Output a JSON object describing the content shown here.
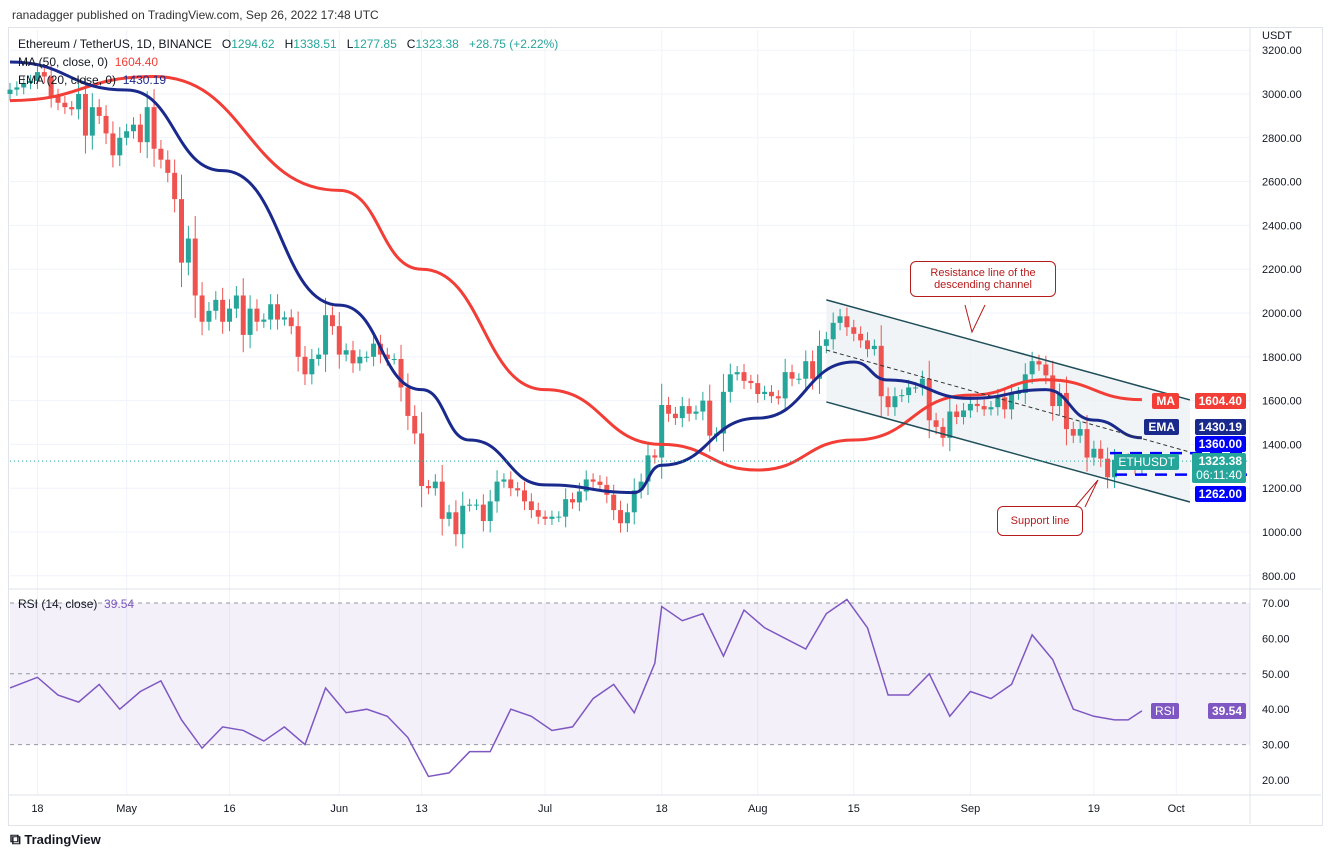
{
  "header": {
    "published": "ranadagger published on TradingView.com, Sep 26, 2022 17:48 UTC",
    "symbol": "Ethereum / TetherUS, 1D, BINANCE",
    "o_label": "O",
    "o": "1294.62",
    "h_label": "H",
    "h": "1338.51",
    "l_label": "L",
    "l": "1277.85",
    "c_label": "C",
    "c": "1323.38",
    "change": "+28.75 (+2.22%)",
    "ma_label": "MA (50, close, 0)",
    "ma_value": "1604.40",
    "ema_label": "EMA (20, close, 0)",
    "ema_value": "1430.19"
  },
  "colors": {
    "up": "#26a69a",
    "down": "#ef5350",
    "ma": "#f23e36",
    "ema": "#1a2a8c",
    "rsi": "#7e57c2",
    "channel": "#1f4e5a",
    "level": "#0000ff"
  },
  "axis": {
    "currency": "USDT",
    "price_ticks": [
      "3200.00",
      "3000.00",
      "2800.00",
      "2600.00",
      "2400.00",
      "2200.00",
      "2000.00",
      "1800.00",
      "1600.00",
      "1400.00",
      "1200.00",
      "1000.00",
      "800.00"
    ],
    "rsi_ticks": [
      "70.00",
      "60.00",
      "50.00",
      "40.00",
      "30.00",
      "20.00"
    ],
    "x_ticks": [
      {
        "label": "18",
        "date": "2022-04-18"
      },
      {
        "label": "May",
        "date": "2022-05-01"
      },
      {
        "label": "16",
        "date": "2022-05-16"
      },
      {
        "label": "Jun",
        "date": "2022-06-01"
      },
      {
        "label": "13",
        "date": "2022-06-13"
      },
      {
        "label": "Jul",
        "date": "2022-07-01"
      },
      {
        "label": "18",
        "date": "2022-07-18"
      },
      {
        "label": "Aug",
        "date": "2022-08-01"
      },
      {
        "label": "15",
        "date": "2022-08-15"
      },
      {
        "label": "Sep",
        "date": "2022-09-01"
      },
      {
        "label": "19",
        "date": "2022-09-19"
      },
      {
        "label": "Oct",
        "date": "2022-10-01"
      }
    ]
  },
  "tags": {
    "ma_name": "MA",
    "ma": "1604.40",
    "ema_name": "EMA",
    "ema": "1430.19",
    "resistance": "1360.00",
    "symbol": "ETHUSDT",
    "price": "1323.38",
    "countdown": "06:11:40",
    "support": "1262.00",
    "rsi_name": "RSI",
    "rsi": "39.54"
  },
  "annotations": {
    "resistance": "Resistance line of the descending channel",
    "support": "Support line"
  },
  "rsi_legend": {
    "label": "RSI (14, close)",
    "value": "39.54"
  },
  "footer": {
    "brand": "TradingView"
  },
  "chart_data": {
    "type": "candlestick",
    "start_date": "2022-04-14",
    "ylim": [
      800,
      3250
    ],
    "closes": [
      3020,
      3030,
      3050,
      3060,
      3100,
      3080,
      2990,
      2960,
      2940,
      2930,
      3000,
      2810,
      2940,
      2900,
      2820,
      2720,
      2800,
      2830,
      2860,
      2780,
      2940,
      2750,
      2700,
      2640,
      2520,
      2230,
      2340,
      2080,
      1960,
      2010,
      2060,
      1960,
      2020,
      2080,
      1900,
      2020,
      1960,
      1970,
      2040,
      1970,
      1980,
      1940,
      1800,
      1720,
      1790,
      1810,
      1990,
      1940,
      1810,
      1830,
      1770,
      1800,
      1800,
      1860,
      1810,
      1790,
      1790,
      1660,
      1530,
      1450,
      1210,
      1200,
      1230,
      1060,
      1090,
      990,
      1120,
      1125,
      1125,
      1050,
      1140,
      1230,
      1240,
      1200,
      1190,
      1140,
      1100,
      1070,
      1060,
      1070,
      1070,
      1150,
      1135,
      1185,
      1240,
      1230,
      1215,
      1170,
      1100,
      1040,
      1090,
      1190,
      1230,
      1350,
      1340,
      1580,
      1540,
      1520,
      1575,
      1540,
      1550,
      1600,
      1440,
      1450,
      1640,
      1720,
      1730,
      1690,
      1680,
      1630,
      1640,
      1620,
      1610,
      1730,
      1700,
      1700,
      1780,
      1700,
      1850,
      1880,
      1955,
      1985,
      1935,
      1905,
      1875,
      1835,
      1850,
      1620,
      1570,
      1620,
      1625,
      1660,
      1660,
      1700,
      1510,
      1480,
      1430,
      1550,
      1525,
      1555,
      1585,
      1575,
      1560,
      1570,
      1615,
      1560,
      1630,
      1635,
      1720,
      1780,
      1765,
      1715,
      1575,
      1635,
      1470,
      1440,
      1470,
      1340,
      1380,
      1335,
      1250,
      1330,
      1330,
      1315,
      1295,
      1323.38
    ],
    "ma50": [
      [
        "2022-04-14",
        2970
      ],
      [
        "2022-05-05",
        3080
      ],
      [
        "2022-06-01",
        2560
      ],
      [
        "2022-06-13",
        2200
      ],
      [
        "2022-07-01",
        1650
      ],
      [
        "2022-07-18",
        1400
      ],
      [
        "2022-08-01",
        1283
      ],
      [
        "2022-08-15",
        1420
      ],
      [
        "2022-09-01",
        1625
      ],
      [
        "2022-09-12",
        1695
      ],
      [
        "2022-09-26",
        1604.4
      ]
    ],
    "ema20": [
      [
        "2022-04-14",
        3146
      ],
      [
        "2022-05-01",
        3018
      ],
      [
        "2022-05-15",
        2650
      ],
      [
        "2022-06-01",
        2036
      ],
      [
        "2022-06-13",
        1650
      ],
      [
        "2022-06-20",
        1420
      ],
      [
        "2022-07-01",
        1215
      ],
      [
        "2022-07-14",
        1180
      ],
      [
        "2022-07-18",
        1305
      ],
      [
        "2022-08-01",
        1520
      ],
      [
        "2022-08-15",
        1776
      ],
      [
        "2022-08-20",
        1694
      ],
      [
        "2022-09-01",
        1610
      ],
      [
        "2022-09-12",
        1650
      ],
      [
        "2022-09-19",
        1511
      ],
      [
        "2022-09-26",
        1430.19
      ]
    ],
    "channel_upper": [
      [
        "2022-08-11",
        2060
      ],
      [
        "2022-10-03",
        1603
      ]
    ],
    "channel_mid": [
      [
        "2022-08-11",
        1831
      ],
      [
        "2022-10-03",
        1365
      ]
    ],
    "channel_lower": [
      [
        "2022-08-11",
        1594
      ],
      [
        "2022-10-03",
        1137
      ]
    ],
    "levels": [
      1360,
      1262
    ],
    "rsi": {
      "ylim": [
        15,
        75
      ],
      "band": [
        30,
        70
      ],
      "points": [
        [
          "2022-04-14",
          46
        ],
        [
          "2022-04-18",
          49
        ],
        [
          "2022-04-21",
          44
        ],
        [
          "2022-04-24",
          42
        ],
        [
          "2022-04-27",
          47
        ],
        [
          "2022-04-30",
          40
        ],
        [
          "2022-05-03",
          45
        ],
        [
          "2022-05-06",
          48
        ],
        [
          "2022-05-09",
          37
        ],
        [
          "2022-05-12",
          29
        ],
        [
          "2022-05-15",
          35
        ],
        [
          "2022-05-18",
          34
        ],
        [
          "2022-05-21",
          31
        ],
        [
          "2022-05-24",
          35
        ],
        [
          "2022-05-27",
          30
        ],
        [
          "2022-05-30",
          46
        ],
        [
          "2022-06-02",
          39
        ],
        [
          "2022-06-05",
          40
        ],
        [
          "2022-06-08",
          38
        ],
        [
          "2022-06-11",
          32
        ],
        [
          "2022-06-14",
          21
        ],
        [
          "2022-06-17",
          22
        ],
        [
          "2022-06-20",
          28
        ],
        [
          "2022-06-23",
          28
        ],
        [
          "2022-06-26",
          40
        ],
        [
          "2022-06-29",
          38
        ],
        [
          "2022-07-02",
          34
        ],
        [
          "2022-07-05",
          35
        ],
        [
          "2022-07-08",
          43
        ],
        [
          "2022-07-11",
          47
        ],
        [
          "2022-07-14",
          39
        ],
        [
          "2022-07-17",
          53
        ],
        [
          "2022-07-18",
          69
        ],
        [
          "2022-07-21",
          65
        ],
        [
          "2022-07-24",
          67
        ],
        [
          "2022-07-27",
          55
        ],
        [
          "2022-07-30",
          68
        ],
        [
          "2022-08-02",
          63
        ],
        [
          "2022-08-05",
          60
        ],
        [
          "2022-08-08",
          57
        ],
        [
          "2022-08-11",
          67
        ],
        [
          "2022-08-14",
          71
        ],
        [
          "2022-08-17",
          63
        ],
        [
          "2022-08-20",
          44
        ],
        [
          "2022-08-23",
          44
        ],
        [
          "2022-08-26",
          50
        ],
        [
          "2022-08-29",
          38
        ],
        [
          "2022-09-01",
          45
        ],
        [
          "2022-09-04",
          43
        ],
        [
          "2022-09-07",
          47
        ],
        [
          "2022-09-10",
          61
        ],
        [
          "2022-09-13",
          54
        ],
        [
          "2022-09-16",
          40
        ],
        [
          "2022-09-19",
          38
        ],
        [
          "2022-09-22",
          37
        ],
        [
          "2022-09-24",
          37
        ],
        [
          "2022-09-26",
          39.54
        ]
      ]
    }
  }
}
